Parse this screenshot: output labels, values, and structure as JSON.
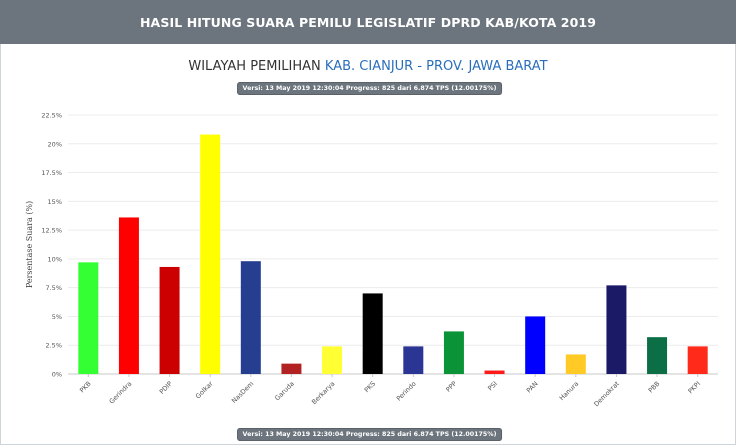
{
  "header": {
    "title": "HASIL HITUNG SUARA PEMILU LEGISLATIF DPRD KAB/KOTA 2019"
  },
  "subtitle": {
    "label": "WILAYAH PEMILIHAN",
    "region": "KAB. CIANJUR - PROV. JAWA BARAT"
  },
  "version_badge": "Versi: 13 May 2019 12:30:04 Progress: 825 dari 6.874 TPS (12.00175%)",
  "chart_data": {
    "type": "bar",
    "title": "",
    "xlabel": "",
    "ylabel": "Persentase Suara (%)",
    "ylim": [
      0,
      22.5
    ],
    "yticks": [
      "0%",
      "2.5%",
      "5%",
      "7.5%",
      "10%",
      "12.5%",
      "15%",
      "17.5%",
      "20%",
      "22.5%"
    ],
    "grid": true,
    "categories": [
      "PKB",
      "Gerindra",
      "PDIP",
      "Golkar",
      "NasDem",
      "Garuda",
      "Berkarya",
      "PKS",
      "Perindo",
      "PPP",
      "PSI",
      "PAN",
      "Hanura",
      "Demokrat",
      "PBB",
      "PKPI"
    ],
    "values": [
      9.7,
      13.6,
      9.3,
      20.8,
      9.8,
      0.9,
      2.4,
      7.0,
      2.4,
      3.7,
      0.3,
      5.0,
      1.7,
      7.7,
      3.2,
      2.4
    ],
    "colors": [
      "#33ff33",
      "#ff0000",
      "#cc0000",
      "#ffff00",
      "#263e8f",
      "#b22222",
      "#ffff33",
      "#000000",
      "#2b3593",
      "#0b9437",
      "#ff1a1a",
      "#0000ff",
      "#ffc926",
      "#1a1a66",
      "#0b6e45",
      "#ff2a1a"
    ]
  }
}
